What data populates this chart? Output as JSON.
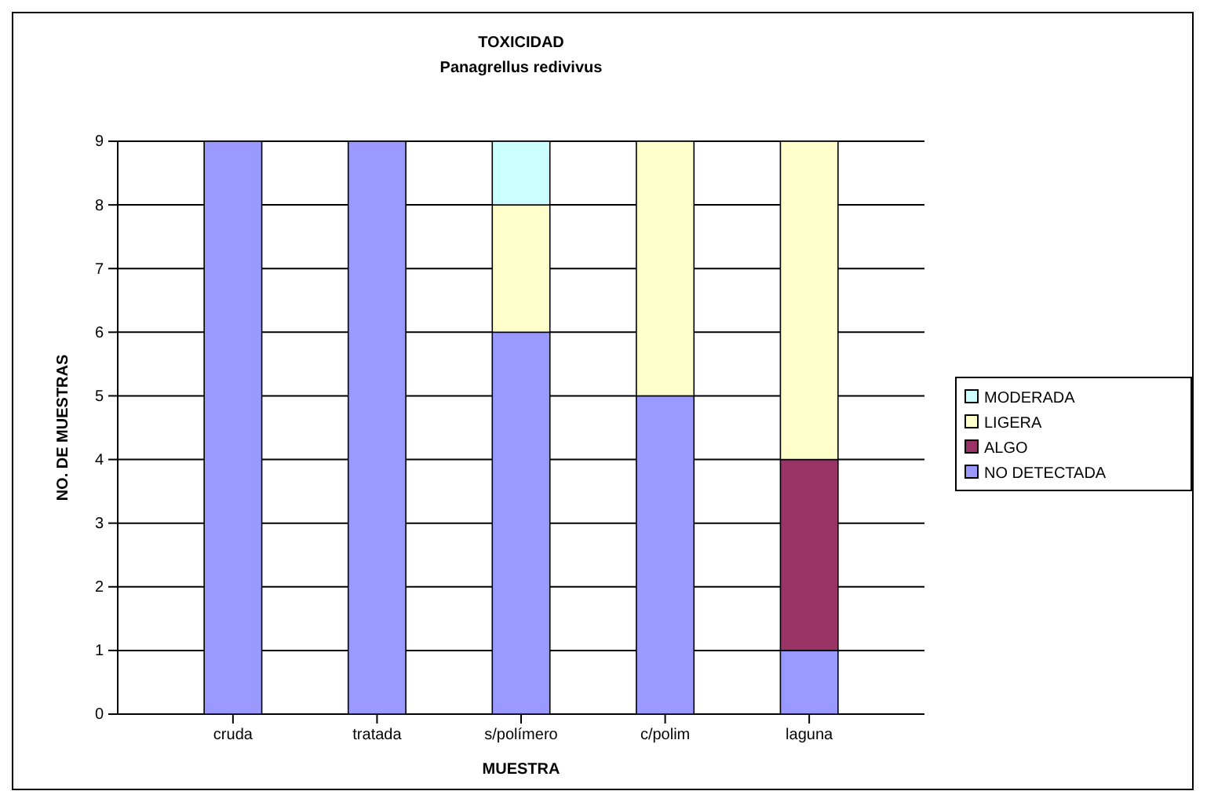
{
  "chart_data": {
    "type": "bar",
    "title": "TOXICIDAD",
    "subtitle": "Panagrellus redivivus",
    "xlabel": "MUESTRA",
    "ylabel": "NO. DE MUESTRAS",
    "categories": [
      "cruda",
      "tratada",
      "s/polímero",
      "c/polim",
      "laguna"
    ],
    "series": [
      {
        "name": "NO DETECTADA",
        "color": "#9999ff",
        "values": [
          9,
          9,
          6,
          5,
          1
        ]
      },
      {
        "name": "ALGO",
        "color": "#993366",
        "values": [
          0,
          0,
          0,
          0,
          3
        ]
      },
      {
        "name": "LIGERA",
        "color": "#ffffcc",
        "values": [
          0,
          0,
          2,
          4,
          5
        ]
      },
      {
        "name": "MODERADA",
        "color": "#ccffff",
        "values": [
          0,
          0,
          1,
          0,
          0
        ]
      }
    ],
    "stacked": true,
    "ylim": [
      0,
      9
    ],
    "yticks": [
      0,
      1,
      2,
      3,
      4,
      5,
      6,
      7,
      8,
      9
    ],
    "grid": "y",
    "legend": "right"
  }
}
